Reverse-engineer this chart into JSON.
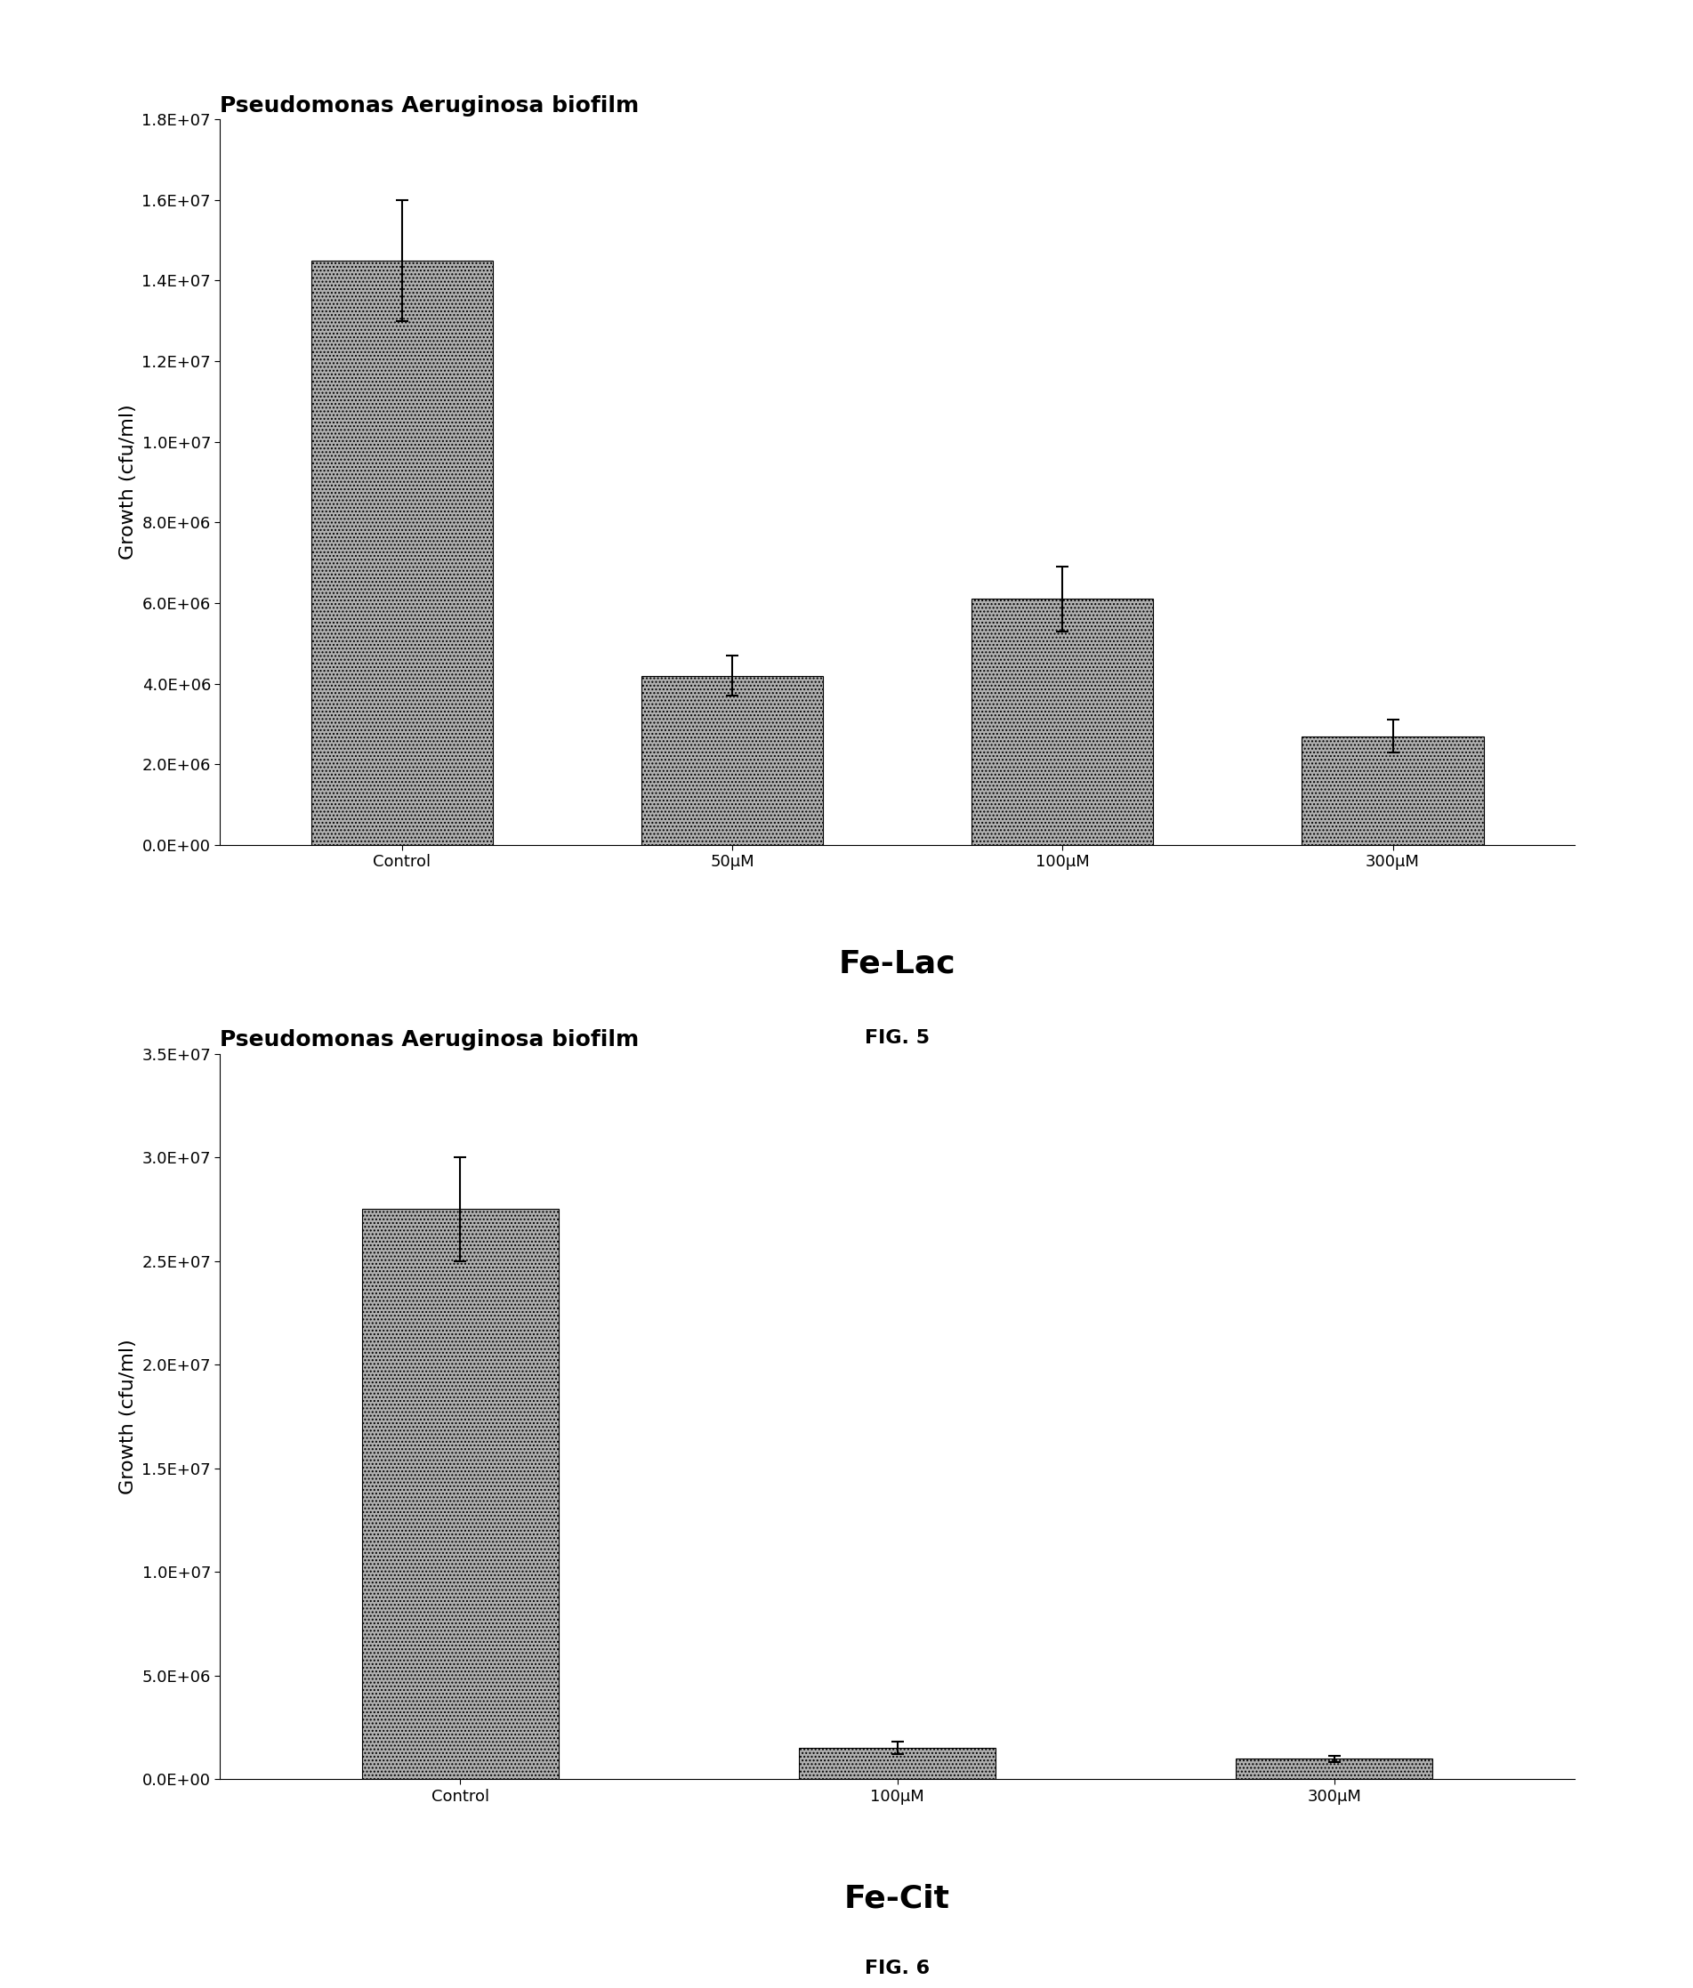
{
  "fig1": {
    "title": "Pseudomonas Aeruginosa biofilm",
    "categories": [
      "Control",
      "50μM",
      "100μM",
      "300μM"
    ],
    "values": [
      14500000.0,
      4200000.0,
      6100000.0,
      2700000.0
    ],
    "errors": [
      1500000.0,
      500000.0,
      800000.0,
      400000.0
    ],
    "ylim": [
      0,
      18000000.0
    ],
    "yticks": [
      0,
      2000000.0,
      4000000.0,
      6000000.0,
      8000000.0,
      10000000.0,
      12000000.0,
      14000000.0,
      16000000.0,
      18000000.0
    ],
    "ytick_labels": [
      "0.0E+00",
      "2.0E+06",
      "4.0E+06",
      "6.0E+06",
      "8.0E+06",
      "1.0E+07",
      "1.2E+07",
      "1.4E+07",
      "1.6E+07",
      "1.8E+07"
    ],
    "ylabel": "Growth (cfu/ml)",
    "xlabel_below": "Fe-Lac",
    "fig_label": "FIG. 5",
    "bar_color": "#b0b0b0",
    "bar_width": 0.55
  },
  "fig2": {
    "title": "Pseudomonas Aeruginosa biofilm",
    "categories": [
      "Control",
      "100μM",
      "300μM"
    ],
    "values": [
      27500000.0,
      1500000.0,
      1000000.0
    ],
    "errors": [
      2500000.0,
      300000.0,
      150000.0
    ],
    "ylim": [
      0,
      35000000.0
    ],
    "yticks": [
      0,
      5000000.0,
      10000000.0,
      15000000.0,
      20000000.0,
      25000000.0,
      30000000.0,
      35000000.0
    ],
    "ytick_labels": [
      "0.0E+00",
      "5.0E+06",
      "1.0E+07",
      "1.5E+07",
      "2.0E+07",
      "2.5E+07",
      "3.0E+07",
      "3.5E+07"
    ],
    "ylabel": "Growth (cfu/ml)",
    "xlabel_below": "Fe-Cit",
    "fig_label": "FIG. 6",
    "bar_color": "#b0b0b0",
    "bar_width": 0.45
  },
  "background_color": "#ffffff",
  "title_fontsize": 18,
  "axis_label_fontsize": 16,
  "tick_fontsize": 13,
  "xlabel_below_fontsize": 26,
  "fig_label_fontsize": 16
}
